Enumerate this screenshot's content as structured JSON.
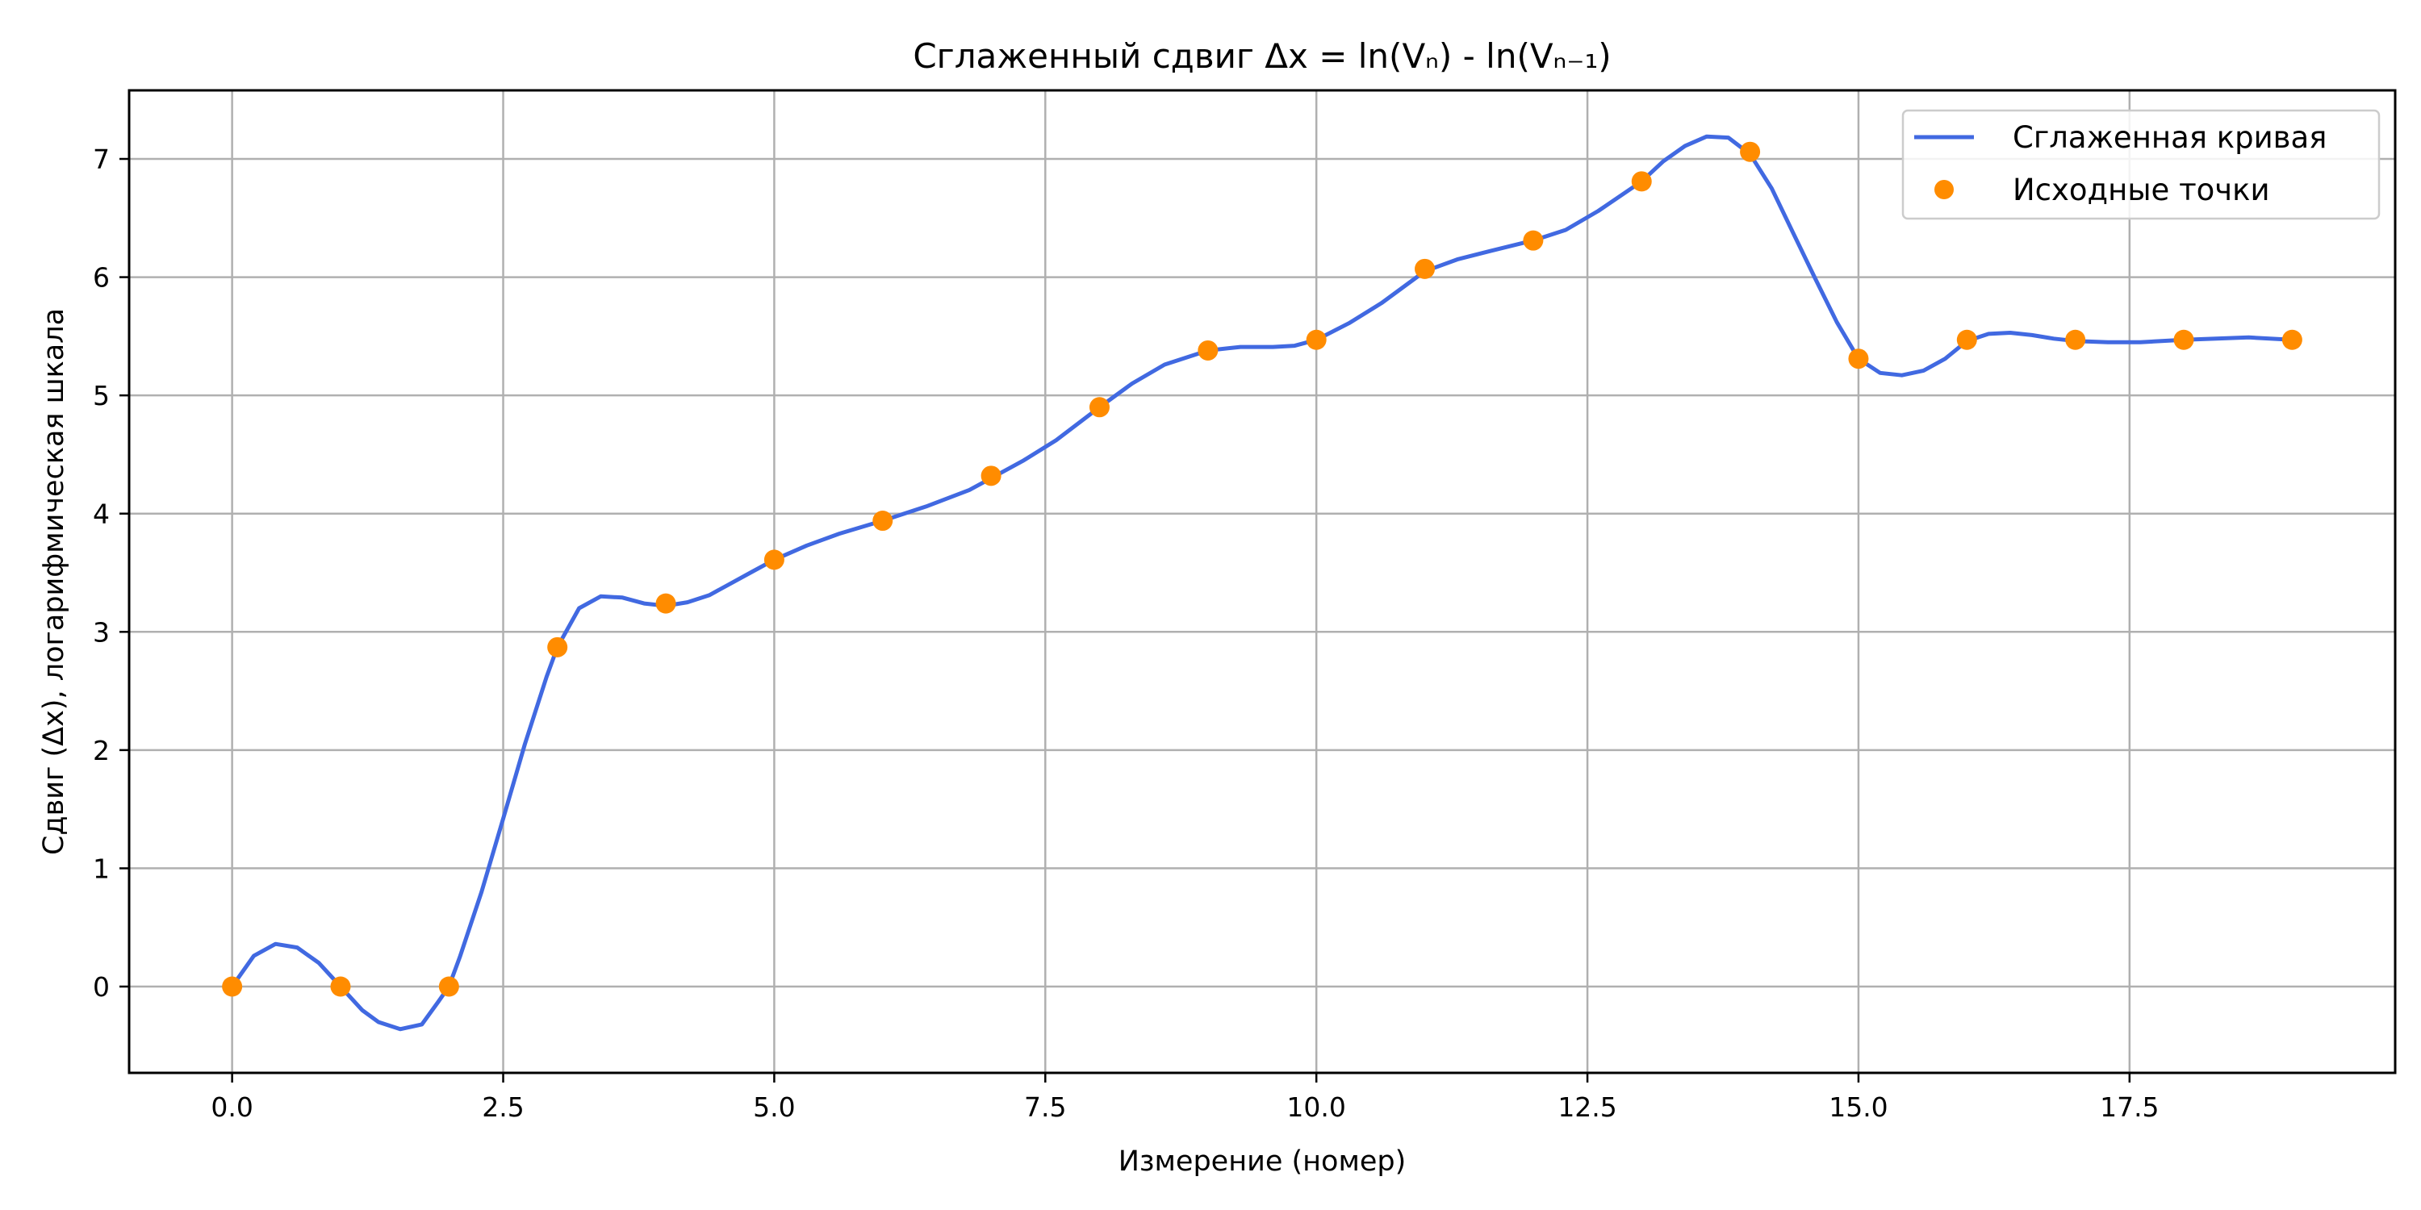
{
  "chart_data": {
    "type": "line",
    "title": "Сглаженный сдвиг Δx = ln(Vₙ) - ln(Vₙ₋₁)",
    "xlabel": "Измерение (номер)",
    "ylabel": "Сдвиг (Δx), логарифмическая шкала",
    "xlim": [
      -0.95,
      19.95
    ],
    "ylim": [
      -0.73,
      7.58
    ],
    "xticks": [
      0.0,
      2.5,
      5.0,
      7.5,
      10.0,
      12.5,
      15.0,
      17.5
    ],
    "xtick_labels": [
      "0.0",
      "2.5",
      "5.0",
      "7.5",
      "10.0",
      "12.5",
      "15.0",
      "17.5"
    ],
    "yticks": [
      0,
      1,
      2,
      3,
      4,
      5,
      6,
      7
    ],
    "ytick_labels": [
      "0",
      "1",
      "2",
      "3",
      "4",
      "5",
      "6",
      "7"
    ],
    "grid": true,
    "legend_position": "top-right",
    "series": [
      {
        "name": "Сглаженная кривая",
        "kind": "line",
        "color": "#4169e1",
        "x": [
          0,
          0.2,
          0.4,
          0.6,
          0.8,
          1.0,
          1.2,
          1.35,
          1.55,
          1.75,
          1.9,
          2.0,
          2.1,
          2.3,
          2.5,
          2.7,
          2.9,
          3.0,
          3.2,
          3.4,
          3.6,
          3.8,
          4.0,
          4.2,
          4.4,
          4.6,
          4.8,
          5.0,
          5.3,
          5.6,
          6.0,
          6.4,
          6.8,
          7.0,
          7.3,
          7.6,
          8.0,
          8.3,
          8.6,
          9.0,
          9.3,
          9.6,
          9.8,
          10.0,
          10.3,
          10.6,
          11.0,
          11.3,
          11.6,
          12.0,
          12.3,
          12.6,
          13.0,
          13.2,
          13.4,
          13.6,
          13.8,
          14.0,
          14.2,
          14.4,
          14.6,
          14.8,
          15.0,
          15.2,
          15.4,
          15.6,
          15.8,
          16.0,
          16.2,
          16.4,
          16.6,
          16.8,
          17.0,
          17.3,
          17.6,
          18.0,
          18.3,
          18.6,
          19.0
        ],
        "y": [
          0,
          0.26,
          0.36,
          0.33,
          0.2,
          0.0,
          -0.2,
          -0.3,
          -0.36,
          -0.32,
          -0.13,
          0.0,
          0.25,
          0.8,
          1.42,
          2.05,
          2.62,
          2.87,
          3.2,
          3.3,
          3.29,
          3.24,
          3.22,
          3.25,
          3.31,
          3.41,
          3.51,
          3.61,
          3.73,
          3.83,
          3.94,
          4.06,
          4.2,
          4.3,
          4.45,
          4.62,
          4.9,
          5.1,
          5.26,
          5.38,
          5.41,
          5.41,
          5.42,
          5.47,
          5.61,
          5.78,
          6.05,
          6.15,
          6.22,
          6.31,
          6.4,
          6.56,
          6.81,
          6.98,
          7.11,
          7.19,
          7.18,
          7.04,
          6.75,
          6.37,
          5.99,
          5.62,
          5.31,
          5.19,
          5.17,
          5.21,
          5.31,
          5.46,
          5.52,
          5.53,
          5.51,
          5.48,
          5.46,
          5.45,
          5.45,
          5.47,
          5.48,
          5.49,
          5.47
        ]
      },
      {
        "name": "Исходные точки",
        "kind": "scatter",
        "color": "#ff8c00",
        "x": [
          0,
          1,
          2,
          3,
          4,
          5,
          6,
          7,
          8,
          9,
          10,
          11,
          12,
          13,
          14,
          15,
          16,
          17,
          18,
          19
        ],
        "y": [
          0.0,
          0.0,
          0.0,
          2.87,
          3.24,
          3.61,
          3.94,
          4.32,
          4.9,
          5.38,
          5.47,
          6.07,
          6.31,
          6.81,
          7.06,
          5.31,
          5.47,
          5.47,
          5.47,
          5.47
        ]
      }
    ]
  }
}
